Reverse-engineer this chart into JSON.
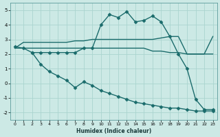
{
  "bg_color": "#cce9e5",
  "grid_color": "#aad4cf",
  "line_color": "#1a6b6b",
  "marker": "D",
  "markersize": 2.5,
  "linewidth": 1.0,
  "xlabel": "Humidex (Indice chaleur)",
  "xlim": [
    -0.5,
    23.5
  ],
  "ylim": [
    -2.5,
    5.5
  ],
  "xticks": [
    0,
    1,
    2,
    3,
    4,
    5,
    6,
    7,
    8,
    9,
    10,
    11,
    12,
    13,
    14,
    15,
    16,
    17,
    18,
    19,
    20,
    21,
    22,
    23
  ],
  "yticks": [
    -2,
    -1,
    0,
    1,
    2,
    3,
    4,
    5
  ],
  "line1_x": [
    0,
    1,
    2,
    3,
    4,
    5,
    6,
    7,
    8,
    9,
    10,
    11,
    12,
    13,
    14,
    15,
    16,
    17,
    18,
    19,
    20,
    21,
    22,
    23
  ],
  "line1_y": [
    2.5,
    2.4,
    2.1,
    2.1,
    2.1,
    2.1,
    2.1,
    2.1,
    2.4,
    2.4,
    4.0,
    4.7,
    4.5,
    4.9,
    4.2,
    4.3,
    4.6,
    4.2,
    3.2,
    2.0,
    1.0,
    -1.1,
    -1.8,
    -1.8
  ],
  "line2_x": [
    0,
    1,
    2,
    3,
    4,
    5,
    6,
    7,
    8,
    9,
    10,
    11,
    12,
    13,
    14,
    15,
    16,
    17,
    18,
    19,
    20,
    21,
    22,
    23
  ],
  "line2_y": [
    2.4,
    2.8,
    2.8,
    2.8,
    2.8,
    2.8,
    2.8,
    2.9,
    2.9,
    3.0,
    3.0,
    3.0,
    3.0,
    3.0,
    3.0,
    3.0,
    3.0,
    3.1,
    3.2,
    3.2,
    2.0,
    2.0,
    2.0,
    3.2
  ],
  "line3_x": [
    0,
    1,
    2,
    3,
    4,
    5,
    6,
    7,
    8,
    9,
    10,
    11,
    12,
    13,
    14,
    15,
    16,
    17,
    18,
    19,
    20,
    21,
    22,
    23
  ],
  "line3_y": [
    2.4,
    2.4,
    2.4,
    2.4,
    2.4,
    2.4,
    2.4,
    2.4,
    2.4,
    2.4,
    2.4,
    2.4,
    2.4,
    2.4,
    2.4,
    2.4,
    2.2,
    2.2,
    2.1,
    2.1,
    2.0,
    2.0,
    2.0,
    2.0
  ],
  "line4_x": [
    2,
    3,
    4,
    5,
    6,
    7,
    8,
    9,
    10,
    11,
    12,
    13,
    14,
    15,
    16,
    17,
    18,
    19,
    20,
    21,
    22,
    23
  ],
  "line4_y": [
    2.1,
    1.3,
    0.8,
    0.5,
    0.2,
    -0.3,
    0.1,
    -0.15,
    -0.5,
    -0.7,
    -0.9,
    -1.1,
    -1.3,
    -1.4,
    -1.5,
    -1.6,
    -1.7,
    -1.7,
    -1.8,
    -1.9,
    -1.9,
    -1.9
  ]
}
